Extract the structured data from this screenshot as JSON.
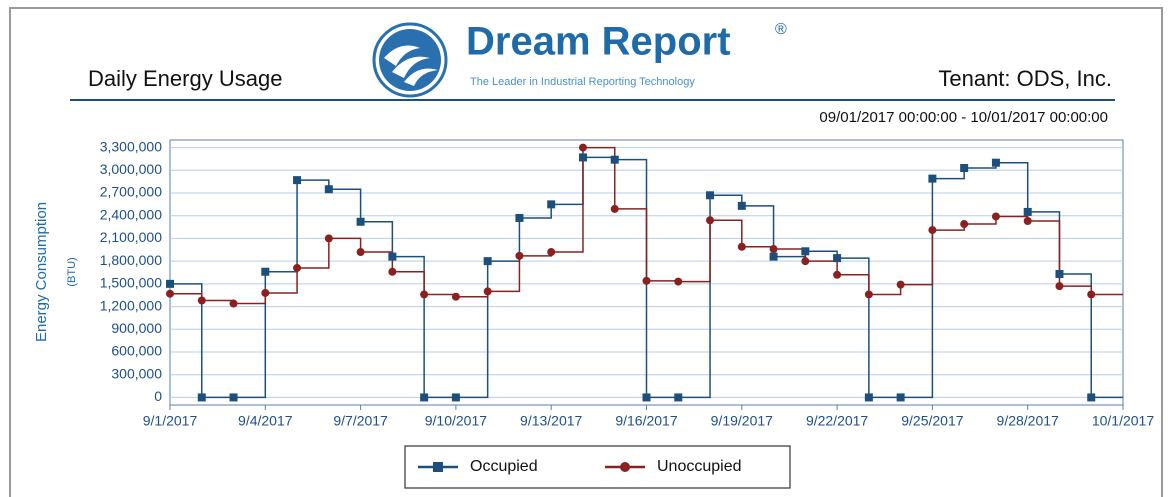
{
  "header": {
    "brand": "Dream Report",
    "brand_mark": "®",
    "tagline": "The Leader in Industrial Reporting Technology",
    "report_title": "Daily Energy Usage",
    "tenant": "Tenant: ODS, Inc.",
    "date_range": "09/01/2017 00:00:00 - 10/01/2017 00:00:00"
  },
  "chart_data": {
    "type": "step-line",
    "y_label": "Energy Consumption",
    "y_unit": "(BTU)",
    "x": [
      "9/1/2017",
      "9/2/2017",
      "9/3/2017",
      "9/4/2017",
      "9/5/2017",
      "9/6/2017",
      "9/7/2017",
      "9/8/2017",
      "9/9/2017",
      "9/10/2017",
      "9/11/2017",
      "9/12/2017",
      "9/13/2017",
      "9/14/2017",
      "9/15/2017",
      "9/16/2017",
      "9/17/2017",
      "9/18/2017",
      "9/19/2017",
      "9/20/2017",
      "9/21/2017",
      "9/22/2017",
      "9/23/2017",
      "9/24/2017",
      "9/25/2017",
      "9/26/2017",
      "9/27/2017",
      "9/28/2017",
      "9/29/2017",
      "9/30/2017"
    ],
    "xlim": [
      "9/1/2017",
      "10/1/2017"
    ],
    "xticks": [
      "9/1/2017",
      "9/4/2017",
      "9/7/2017",
      "9/10/2017",
      "9/13/2017",
      "9/16/2017",
      "9/19/2017",
      "9/22/2017",
      "9/25/2017",
      "9/28/2017",
      "10/1/2017"
    ],
    "ylim": [
      -100000,
      3400000
    ],
    "yticks": [
      0,
      {
        "value": 300000,
        "label": "300,000"
      },
      {
        "value": 600000,
        "label": "600,000"
      },
      {
        "value": 900000,
        "label": "900,000"
      },
      {
        "value": 1200000,
        "label": "1,200,000"
      },
      {
        "value": 1500000,
        "label": "1,500,000"
      },
      {
        "value": 1800000,
        "label": "1,800,000"
      },
      {
        "value": 2100000,
        "label": "2,100,000"
      },
      {
        "value": 2400000,
        "label": "2,400,000"
      },
      {
        "value": 2700000,
        "label": "2,700,000"
      },
      {
        "value": 3000000,
        "label": "3,000,000"
      },
      {
        "value": 3300000,
        "label": "3,300,000"
      }
    ],
    "grid": true,
    "series": [
      {
        "name": "Occupied",
        "color": "#1d4f7c",
        "marker": "square",
        "values": [
          1500000,
          0,
          0,
          1660000,
          2870000,
          2750000,
          2320000,
          1860000,
          0,
          0,
          1800000,
          2370000,
          2550000,
          3170000,
          3140000,
          0,
          0,
          2670000,
          2530000,
          1860000,
          1930000,
          1840000,
          0,
          0,
          2890000,
          3030000,
          3100000,
          2450000,
          1630000,
          0
        ]
      },
      {
        "name": "Unoccupied",
        "color": "#8a2020",
        "marker": "circle",
        "values": [
          1370000,
          1280000,
          1240000,
          1380000,
          1710000,
          2100000,
          1920000,
          1660000,
          1360000,
          1330000,
          1400000,
          1870000,
          1920000,
          3300000,
          2490000,
          1540000,
          1530000,
          2340000,
          1990000,
          1960000,
          1800000,
          1620000,
          1360000,
          1490000,
          2210000,
          2290000,
          2390000,
          2330000,
          1470000,
          1360000
        ]
      }
    ]
  }
}
